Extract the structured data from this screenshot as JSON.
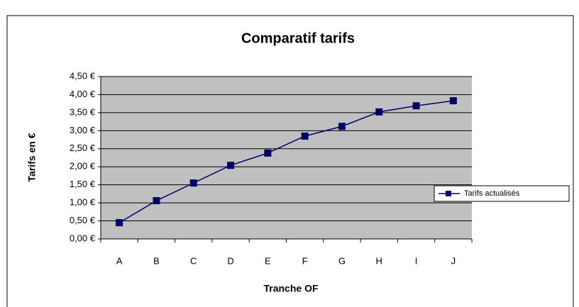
{
  "chart_data": {
    "type": "line",
    "title": "Comparatif tarifs",
    "x_label": "Tranche OF",
    "y_label": "Tarifs en €",
    "categories": [
      "A",
      "B",
      "C",
      "D",
      "E",
      "F",
      "G",
      "H",
      "I",
      "J"
    ],
    "series": [
      {
        "name": "Tarifs actualisés",
        "color": "#000066",
        "values": [
          0.45,
          1.06,
          1.55,
          2.04,
          2.38,
          2.85,
          3.12,
          3.52,
          3.69,
          3.83
        ]
      }
    ],
    "ylim": [
      0,
      4.5
    ],
    "yticks": [
      {
        "value": 0,
        "label": "0,00 €"
      },
      {
        "value": 0.5,
        "label": "0,50 €"
      },
      {
        "value": 1,
        "label": "1,00 €"
      },
      {
        "value": 1.5,
        "label": "1,50 €"
      },
      {
        "value": 2,
        "label": "2,00 €"
      },
      {
        "value": 2.5,
        "label": "2,50 €"
      },
      {
        "value": 3,
        "label": "3,00 €"
      },
      {
        "value": 3.5,
        "label": "3,50 €"
      },
      {
        "value": 4,
        "label": "4,00 €"
      },
      {
        "value": 4.5,
        "label": "4,50 €"
      }
    ],
    "grid": true,
    "legend": "right",
    "plot_background": "#c0c0c0"
  }
}
